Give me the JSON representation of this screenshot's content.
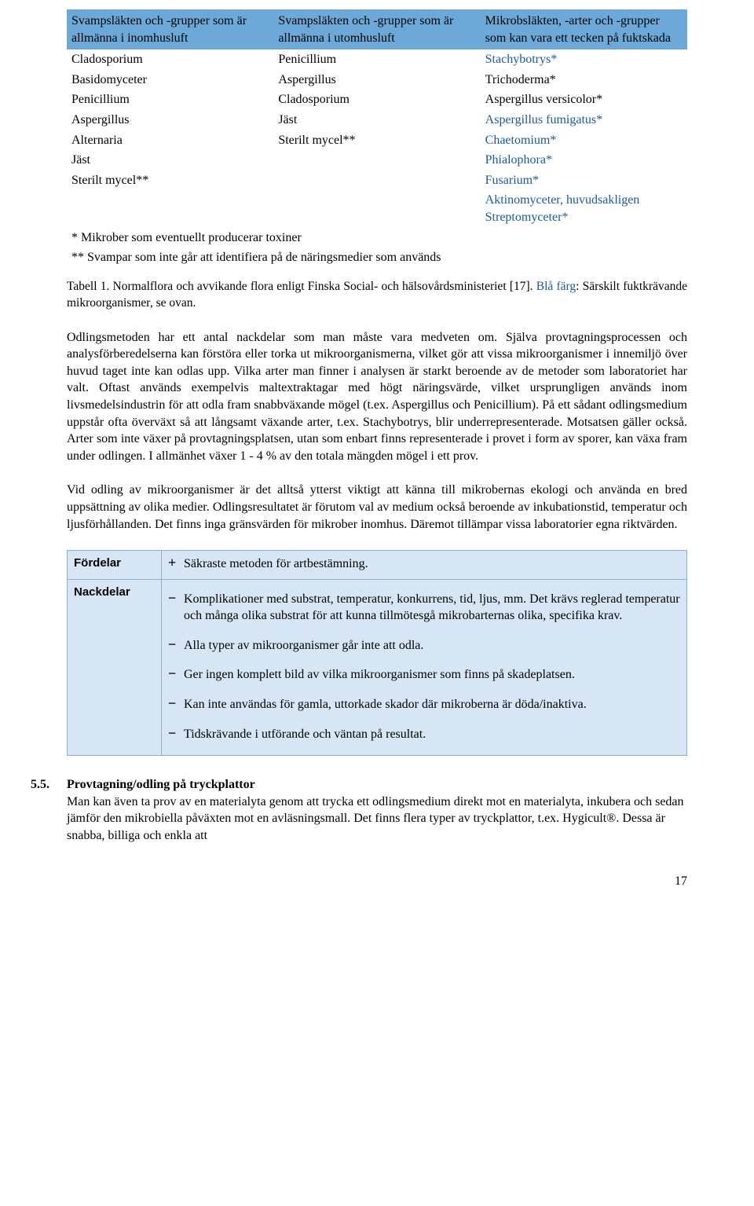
{
  "table1": {
    "header_bg": "#6da9d8",
    "blue_color": "#1a5a9e",
    "headers": [
      "Svampsläkten och -grupper som är allmänna i inomhusluft",
      "Svampsläkten och -grupper som är allmänna i utomhusluft",
      "Mikrobsläkten, -arter och -grupper som kan vara ett tecken på fuktskada"
    ],
    "rows": [
      [
        "Cladosporium",
        "Penicillium",
        "Stachybotrys*"
      ],
      [
        "Basidomyceter",
        "Aspergillus",
        "Trichoderma*"
      ],
      [
        "Penicillium",
        "Cladosporium",
        "Aspergillus versicolor*"
      ],
      [
        "Aspergillus",
        "Jäst",
        "Aspergillus fumigatus*"
      ],
      [
        "Alternaria",
        "Sterilt mycel**",
        "Chaetomium*"
      ],
      [
        "Jäst",
        "",
        "Phialophora*"
      ],
      [
        "Sterilt mycel**",
        "",
        "Fusarium*"
      ],
      [
        "",
        "",
        "Aktinomyceter, huvudsakligen Streptomyceter*"
      ]
    ],
    "blue_rows": [
      0,
      3,
      4,
      5,
      6,
      7
    ],
    "footnote1": "* Mikrober som eventuellt producerar toxiner",
    "footnote2": "** Svampar som inte går att identifiera på de näringsmedier som används"
  },
  "caption": {
    "prefix": "Tabell 1. Normalflora och avvikande flora enligt Finska Social- och hälsovårdsministeriet [17]. ",
    "blue_label": "Blå färg",
    "rest": ": Särskilt fuktkrävande mikroorganismer, se ovan."
  },
  "paragraph1": "Odlingsmetoden har ett antal nackdelar som man måste vara medveten om. Själva provtagningsprocessen och analysförberedelserna kan förstöra eller torka ut mikroorganismerna, vilket gör att vissa mikroorganismer i innemiljö över huvud taget inte kan odlas upp. Vilka arter man finner i analysen är starkt beroende av de metoder som laboratoriet har valt. Oftast används exempelvis maltextraktagar med högt näringsvärde, vilket ursprungligen används inom livsmedelsindustrin för att odla fram snabbväxande mögel (t.ex. Aspergillus och Penicillium). På ett sådant odlingsmedium uppstår ofta överväxt så att långsamt växande arter, t.ex. Stachybotrys, blir underrepresenterade. Motsatsen gäller också. Arter som inte växer på provtagningsplatsen, utan som enbart finns representerade i provet i form av sporer, kan växa fram under odlingen. I allmänhet växer 1 - 4 % av den totala mängden mögel i ett prov.",
  "paragraph2": "Vid odling av mikroorganismer är det alltså ytterst viktigt att känna till mikrobernas ekologi och använda en bred uppsättning av olika medier. Odlingsresultatet är förutom val av medium också beroende av inkubationstid, temperatur och ljusförhållanden. Det finns inga gränsvärden för mikrober inomhus. Däremot tillämpar vissa laboratorier egna riktvärden.",
  "proscons": {
    "pros_label": "Fördelar",
    "cons_label": "Nackdelar",
    "pros": [
      "Säkraste metoden för artbestämning."
    ],
    "cons": [
      "Komplikationer med substrat, temperatur, konkurrens, tid, ljus, mm. Det krävs reglerad temperatur och många olika substrat för att kunna tillmötesgå mikrobarternas olika, specifika krav.",
      "Alla typer av mikroorganismer går inte att odla.",
      "Ger ingen komplett bild av vilka mikroorganismer som finns på skadeplatsen.",
      "Kan inte användas för gamla, uttorkade skador där mikroberna är döda/inaktiva.",
      "Tidskrävande i utförande och väntan på resultat."
    ]
  },
  "section": {
    "number": "5.5.",
    "title": "Provtagning/odling på tryckplattor",
    "body": "Man kan även ta prov av en materialyta genom att trycka ett odlingsmedium direkt mot en materialyta, inkubera och sedan jämför den mikrobiella påväxten mot en avläsningsmall. Det finns flera typer av tryckplattor, t.ex. Hygicult®. Dessa är snabba, billiga och enkla att"
  },
  "page_number": "17"
}
